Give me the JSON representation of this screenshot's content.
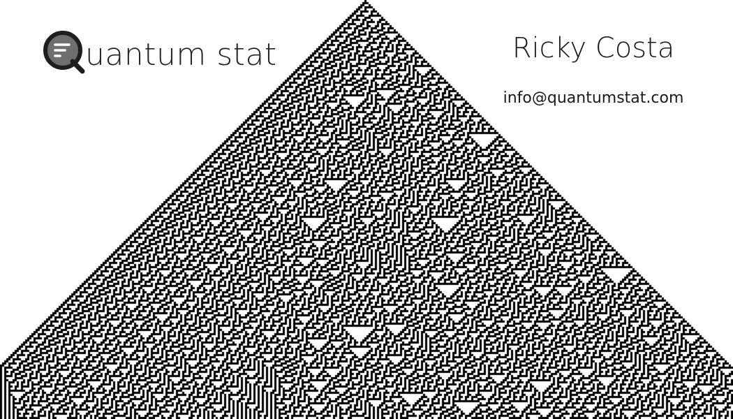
{
  "logo": {
    "icon": "magnifier-q-icon",
    "text_initial": "Q",
    "text_rest": "uantum stat",
    "colors": {
      "ring": "#1e1e1e",
      "fill": "#6f6f6f",
      "lines": "#ffffff"
    }
  },
  "contact": {
    "name": "Ricky Costa",
    "email": "info@quantumstat.com"
  },
  "background": {
    "pattern": "rule-30-cellular-automaton",
    "cell_color": "#000000",
    "empty_color": "#ffffff"
  }
}
